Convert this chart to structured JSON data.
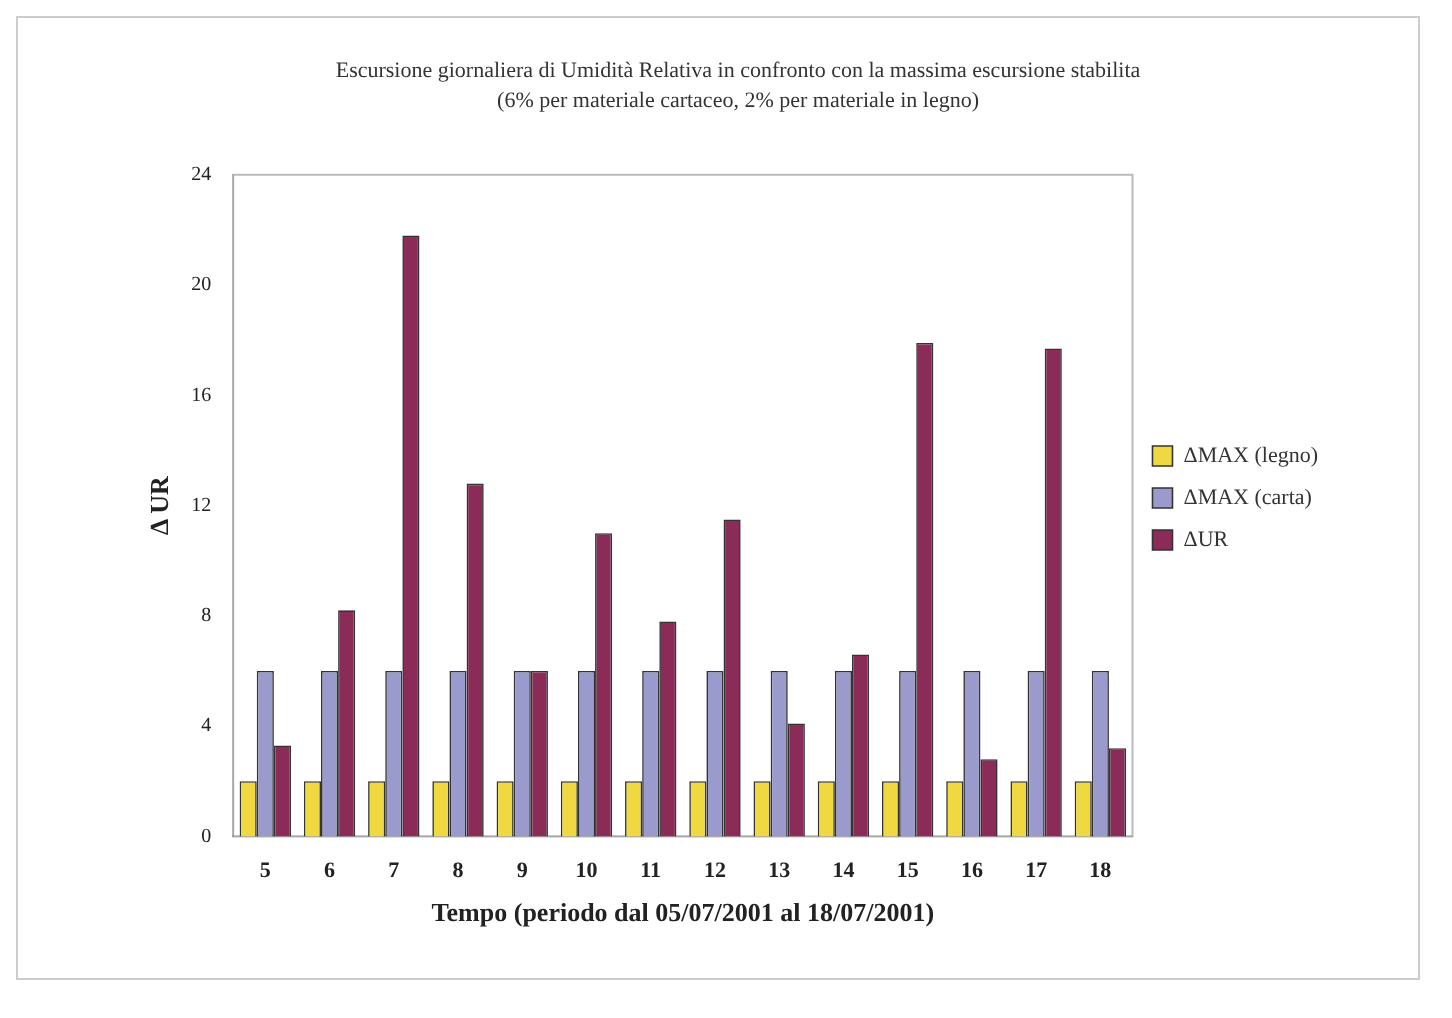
{
  "chart_data": {
    "type": "bar",
    "title": "Escursione giornaliera di Umidità Relativa in confronto con la massima escursione stabilita",
    "subtitle": "(6% per materiale cartaceo, 2% per materiale in legno)",
    "xlabel": "Tempo (periodo dal 05/07/2001 al 18/07/2001)",
    "ylabel": "Δ UR",
    "categories": [
      "5",
      "6",
      "7",
      "8",
      "9",
      "10",
      "11",
      "12",
      "13",
      "14",
      "15",
      "16",
      "17",
      "18"
    ],
    "series": [
      {
        "name": "ΔMAX (legno)",
        "color": "#f0d840",
        "values": [
          2,
          2,
          2,
          2,
          2,
          2,
          2,
          2,
          2,
          2,
          2,
          2,
          2,
          2
        ]
      },
      {
        "name": "ΔMAX (carta)",
        "color": "#9a9acc",
        "values": [
          6,
          6,
          6,
          6,
          6,
          6,
          6,
          6,
          6,
          6,
          6,
          6,
          6,
          6
        ]
      },
      {
        "name": "ΔUR",
        "color": "#8b2b57",
        "values": [
          3.3,
          8.2,
          21.8,
          12.8,
          6.0,
          11.0,
          7.8,
          11.5,
          4.1,
          6.6,
          17.9,
          2.8,
          17.7,
          3.2
        ]
      }
    ],
    "ylim": [
      0,
      24
    ],
    "yticks": [
      0,
      4,
      8,
      12,
      16,
      20,
      24
    ],
    "grid": false,
    "legend": "right"
  }
}
